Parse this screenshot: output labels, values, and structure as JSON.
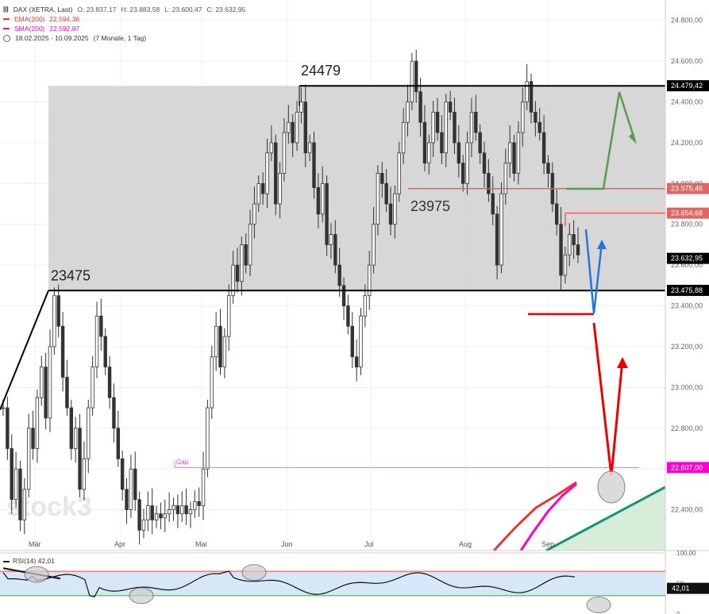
{
  "legend": {
    "main": "DAX (XETRA, Last)",
    "o": "O: 23.837,17",
    "h": "H: 23.883,58",
    "l": "L: 23.600,47",
    "c": "C: 23.632,95",
    "ema": "EMA(200)",
    "ema_val": "22.594,36",
    "sma": "SMA(200)",
    "sma_val": "22.592,87",
    "range": "18.02.2025 - 10.09.2025",
    "period": "(7 Monate, 1 Tag)"
  },
  "rsi": {
    "label": "RSI(14)",
    "value": "42,01"
  },
  "watermark": "stock3",
  "colors": {
    "ema": "#e53935",
    "sma": "#ff00cc",
    "resistance": "#000000",
    "zone": "#d3d3d3",
    "up_arrow": "#5a9c4f",
    "down_arrow": "#ee0000",
    "blue_arrow": "#2277dd",
    "trendline": "#16937a"
  },
  "chart_data": {
    "type": "candlestick",
    "ylim": [
      22200,
      24900
    ],
    "y_ticks": [
      22400,
      22600,
      22800,
      23000,
      23200,
      23400,
      23600,
      23800,
      24000,
      24200,
      24400,
      24600,
      24800
    ],
    "y_tick_labels": [
      "22.400,00",
      "22.600,00",
      "22.800,00",
      "23.000,00",
      "23.200,00",
      "23.400,00",
      "23.600,00",
      "23.800,00",
      "24.000,00",
      "24.200,00",
      "24.400,00",
      "24.600,00",
      "24.800,00"
    ],
    "months": [
      "Mär",
      "Apr",
      "Mai",
      "Jun",
      "Jul",
      "Aug",
      "Sep"
    ],
    "price_tags": [
      {
        "value": 24479.42,
        "label": "24.479,42",
        "color": "#000000"
      },
      {
        "value": 23975.46,
        "label": "23.975,46",
        "color": "#e06666"
      },
      {
        "value": 23854.68,
        "label": "23.854,68",
        "color": "#e06666"
      },
      {
        "value": 23632.95,
        "label": "23.632,95",
        "color": "#000000"
      },
      {
        "value": 23475.88,
        "label": "23.475,88",
        "color": "#000000"
      },
      {
        "value": 22607.0,
        "label": "22.607,00",
        "color": "#ff00cc"
      }
    ],
    "annotations": [
      {
        "text": "24479",
        "value": 24479
      },
      {
        "text": "23975",
        "value": 23975
      },
      {
        "text": "23475",
        "value": 23475
      },
      {
        "text": "Gap",
        "value": 22607
      }
    ],
    "zone": [
      23475,
      24479
    ],
    "rsi": {
      "ylim": [
        0,
        100
      ],
      "ticks": [
        0,
        50,
        100
      ],
      "tick_labels": [
        "0",
        "50",
        "100,00"
      ],
      "overbought": 70,
      "oversold": 30,
      "last": 42.01,
      "last_label": "42,01"
    }
  }
}
